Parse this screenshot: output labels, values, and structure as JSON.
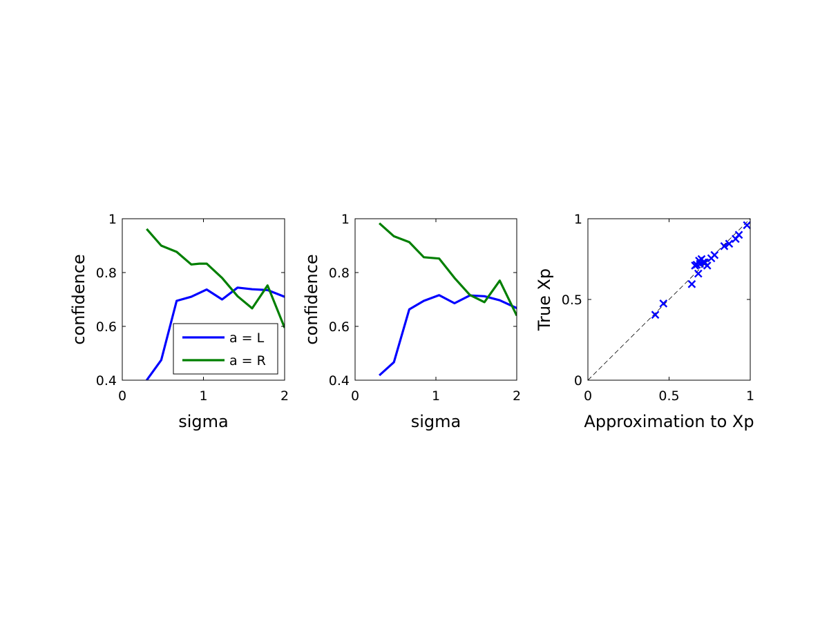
{
  "colors": {
    "blue": "#0000ff",
    "green": "#007f00",
    "axes": "#000000",
    "background": "#ffffff"
  },
  "chart_data": [
    {
      "type": "line",
      "xlabel": "sigma",
      "ylabel": "confidence",
      "xlim": [
        0,
        2
      ],
      "ylim": [
        0.4,
        1
      ],
      "xticks": [
        0,
        1,
        2
      ],
      "xtick_labels": [
        "0",
        "1",
        "2"
      ],
      "yticks": [
        0.4,
        0.6,
        0.8,
        1
      ],
      "ytick_labels": [
        "0.4",
        "0.6",
        "0.8",
        "1"
      ],
      "legend": {
        "position": "bottom-right"
      },
      "series": [
        {
          "name": "a = L",
          "color": "#0000ff",
          "x": [
            0.3,
            0.48,
            0.67,
            0.85,
            1.04,
            1.23,
            1.42,
            1.6,
            1.79,
            2.0
          ],
          "y": [
            0.4,
            0.475,
            0.695,
            0.71,
            0.737,
            0.7,
            0.744,
            0.738,
            0.735,
            0.71
          ]
        },
        {
          "name": "a = R",
          "color": "#007f00",
          "x": [
            0.3,
            0.48,
            0.67,
            0.85,
            0.95,
            1.04,
            1.23,
            1.42,
            1.6,
            1.79,
            2.0
          ],
          "y": [
            0.962,
            0.9,
            0.877,
            0.83,
            0.833,
            0.833,
            0.78,
            0.712,
            0.667,
            0.752,
            0.595
          ]
        }
      ]
    },
    {
      "type": "line",
      "xlabel": "sigma",
      "ylabel": "confidence",
      "xlim": [
        0,
        2
      ],
      "ylim": [
        0.4,
        1
      ],
      "xticks": [
        0,
        1,
        2
      ],
      "xtick_labels": [
        "0",
        "1",
        "2"
      ],
      "yticks": [
        0.4,
        0.6,
        0.8,
        1
      ],
      "ytick_labels": [
        "0.4",
        "0.6",
        "0.8",
        "1"
      ],
      "series": [
        {
          "color": "#0000ff",
          "x": [
            0.3,
            0.48,
            0.67,
            0.85,
            1.04,
            1.23,
            1.42,
            1.6,
            1.79,
            2.0
          ],
          "y": [
            0.418,
            0.467,
            0.663,
            0.695,
            0.716,
            0.686,
            0.715,
            0.712,
            0.697,
            0.668
          ]
        },
        {
          "color": "#007f00",
          "x": [
            0.3,
            0.48,
            0.67,
            0.85,
            1.04,
            1.23,
            1.42,
            1.6,
            1.79,
            2.0
          ],
          "y": [
            0.983,
            0.935,
            0.913,
            0.857,
            0.852,
            0.78,
            0.717,
            0.69,
            0.77,
            0.64
          ]
        }
      ]
    },
    {
      "type": "scatter",
      "xlabel": "Approximation to Xp",
      "ylabel": "True Xp",
      "xlim": [
        0,
        1
      ],
      "ylim": [
        0,
        1
      ],
      "xticks": [
        0,
        0.5,
        1
      ],
      "xtick_labels": [
        "0",
        "0.5",
        "1"
      ],
      "yticks": [
        0,
        0.5,
        1
      ],
      "ytick_labels": [
        "0",
        "0.5",
        "1"
      ],
      "reference_line": "y = x (dashed)",
      "marker": "x",
      "series": [
        {
          "color": "#0000ff",
          "x": [
            0.415,
            0.465,
            0.64,
            0.66,
            0.67,
            0.68,
            0.685,
            0.69,
            0.7,
            0.71,
            0.72,
            0.735,
            0.76,
            0.78,
            0.84,
            0.87,
            0.91,
            0.93,
            0.98
          ],
          "y": [
            0.405,
            0.475,
            0.595,
            0.71,
            0.715,
            0.66,
            0.74,
            0.72,
            0.75,
            0.73,
            0.73,
            0.71,
            0.755,
            0.775,
            0.83,
            0.845,
            0.875,
            0.9,
            0.96
          ]
        }
      ]
    }
  ]
}
